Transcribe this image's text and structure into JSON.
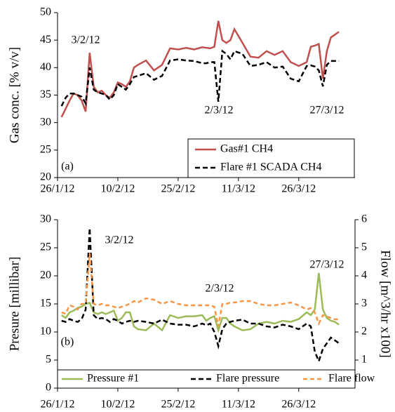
{
  "chart_data": [
    {
      "type": "line",
      "y_label": "Gas conc. [% v/v]",
      "annotations": [
        "3/2/12",
        "2/3/12",
        "27/3/12",
        "(a)"
      ],
      "x": [
        "2012-01-27",
        "2012-01-28",
        "2012-01-29",
        "2012-01-30",
        "2012-01-31",
        "2012-02-01",
        "2012-02-02",
        "2012-02-03",
        "2012-02-04",
        "2012-02-05",
        "2012-02-06",
        "2012-02-07",
        "2012-02-08",
        "2012-02-09",
        "2012-02-10",
        "2012-02-11",
        "2012-02-12",
        "2012-02-13",
        "2012-02-14",
        "2012-02-15",
        "2012-02-17",
        "2012-02-19",
        "2012-02-21",
        "2012-02-23",
        "2012-02-25",
        "2012-02-27",
        "2012-02-29",
        "2012-03-02",
        "2012-03-03",
        "2012-03-04",
        "2012-03-05",
        "2012-03-06",
        "2012-03-07",
        "2012-03-08",
        "2012-03-09",
        "2012-03-10",
        "2012-03-12",
        "2012-03-14",
        "2012-03-16",
        "2012-03-18",
        "2012-03-20",
        "2012-03-22",
        "2012-03-24",
        "2012-03-26",
        "2012-03-28",
        "2012-03-29",
        "2012-03-30",
        "2012-03-31",
        "2012-04-01",
        "2012-04-02",
        "2012-04-03",
        "2012-04-04",
        "2012-04-05"
      ],
      "series": [
        {
          "name": "Gas#1 CH4",
          "color": "#c0504d",
          "linestyle": "solid",
          "values": [
            31,
            32.5,
            34,
            35.3,
            35,
            34,
            32,
            42.7,
            36.5,
            35.5,
            35.8,
            35,
            34.5,
            35.5,
            37.3,
            37,
            36.5,
            37.5,
            40,
            40.5,
            41.3,
            39.5,
            40.5,
            43.5,
            43.3,
            43.6,
            43.3,
            43.7,
            43.6,
            43.5,
            43.8,
            48.5,
            45,
            44.5,
            45,
            47,
            44.5,
            42,
            41.8,
            43,
            42.3,
            43,
            41,
            40.3,
            41,
            43.8,
            44,
            44.3,
            38,
            43,
            45.5,
            46,
            46.5
          ]
        },
        {
          "name": "Flare #1 SCADA CH4",
          "color": "#000000",
          "linestyle": "dashed",
          "values": [
            33,
            34.5,
            35.3,
            35.3,
            35,
            34.7,
            33.5,
            40,
            36,
            35.5,
            35.3,
            35,
            34.2,
            35,
            37,
            36.5,
            36,
            37,
            38.3,
            38.5,
            39,
            37.8,
            38.5,
            41.3,
            41.5,
            41.3,
            41.2,
            40.8,
            40.8,
            41,
            41,
            33.8,
            43,
            42.5,
            41.5,
            43,
            42.5,
            40.3,
            40.5,
            41,
            40,
            40.2,
            38,
            37.5,
            40.3,
            40.4,
            40.2,
            39.5,
            36.6,
            40.5,
            41.2,
            41.2,
            41.2
          ]
        }
      ],
      "xlim": [
        "2012-01-26",
        "2012-04-09"
      ],
      "xticks": [
        {
          "value": "2012-01-26",
          "label": "26/1/12"
        },
        {
          "value": "2012-02-10",
          "label": "10/2/12"
        },
        {
          "value": "2012-02-25",
          "label": "25/2/12"
        },
        {
          "value": "2012-03-11",
          "label": "11/3/12"
        },
        {
          "value": "2012-03-26",
          "label": "26/3/12"
        }
      ],
      "ylim": [
        20,
        50
      ],
      "yticks": [
        20,
        25,
        30,
        35,
        40,
        45,
        50
      ],
      "grid": false,
      "legend": "lower right"
    },
    {
      "type": "line",
      "y_label": "Presure [millibar]",
      "y2_label": "Flow [m^3/hr x100]",
      "annotations": [
        "3/2/12",
        "2/3/12",
        "27/3/12",
        "(b)"
      ],
      "x": [
        "2012-01-27",
        "2012-01-28",
        "2012-01-29",
        "2012-01-30",
        "2012-01-31",
        "2012-02-01",
        "2012-02-02",
        "2012-02-03",
        "2012-02-04",
        "2012-02-05",
        "2012-02-06",
        "2012-02-07",
        "2012-02-08",
        "2012-02-09",
        "2012-02-10",
        "2012-02-11",
        "2012-02-12",
        "2012-02-13",
        "2012-02-14",
        "2012-02-15",
        "2012-02-17",
        "2012-02-19",
        "2012-02-21",
        "2012-02-23",
        "2012-02-25",
        "2012-02-27",
        "2012-02-29",
        "2012-03-02",
        "2012-03-03",
        "2012-03-04",
        "2012-03-05",
        "2012-03-06",
        "2012-03-07",
        "2012-03-08",
        "2012-03-09",
        "2012-03-10",
        "2012-03-12",
        "2012-03-14",
        "2012-03-16",
        "2012-03-18",
        "2012-03-20",
        "2012-03-22",
        "2012-03-24",
        "2012-03-26",
        "2012-03-28",
        "2012-03-29",
        "2012-03-30",
        "2012-03-31",
        "2012-04-01",
        "2012-04-02",
        "2012-04-03",
        "2012-04-04",
        "2012-04-05"
      ],
      "series": [
        {
          "name": "Pressure #1",
          "color": "#9bbb59",
          "linestyle": "solid",
          "values": [
            13,
            12.5,
            13.5,
            13.8,
            14.3,
            14.5,
            15,
            15.2,
            13.5,
            13.2,
            13.5,
            13.2,
            13.5,
            13.8,
            12,
            12.5,
            13.5,
            13.5,
            11,
            10.5,
            10.3,
            11.5,
            10.3,
            13,
            12.5,
            12.8,
            12.8,
            13,
            12,
            12.5,
            12.8,
            10.3,
            12.5,
            12.5,
            11.5,
            11,
            10.3,
            10.5,
            11.5,
            11.8,
            11.5,
            12,
            11.8,
            12.3,
            13.5,
            13,
            14,
            20.5,
            14,
            12.5,
            12,
            11.8,
            11.3
          ]
        },
        {
          "name": "Flare pressure",
          "color": "#000000",
          "linestyle": "dashed",
          "values": [
            12,
            11.8,
            12.3,
            12,
            11.8,
            12.3,
            14,
            28.5,
            13,
            12.3,
            12.5,
            12.3,
            11.8,
            12.3,
            12,
            11.5,
            11.8,
            12,
            11.8,
            12,
            11.8,
            11.5,
            12.2,
            11.5,
            11.3,
            11.3,
            11,
            11.5,
            11.2,
            11.5,
            10,
            7.5,
            10.5,
            11.5,
            11.8,
            12,
            12.2,
            11.5,
            11.5,
            11,
            10.8,
            11.3,
            11,
            10.5,
            11.5,
            11,
            6.5,
            4.8,
            7,
            8,
            9,
            8.5,
            8
          ]
        },
        {
          "name": "Flare flow",
          "color": "#f79646",
          "linestyle": "dashed",
          "axis": "y2",
          "values": [
            2.7,
            2.65,
            2.95,
            2.9,
            2.8,
            3,
            3,
            4.8,
            3,
            2.95,
            3,
            2.95,
            2.95,
            2.9,
            2.85,
            2.9,
            2.95,
            3,
            3.1,
            3.05,
            3.2,
            3.15,
            3,
            3.1,
            3,
            2.95,
            2.95,
            2.95,
            2.95,
            2.95,
            2.9,
            2.2,
            3,
            3,
            3.05,
            3.05,
            3.1,
            3.1,
            3,
            2.95,
            2.95,
            3,
            3.05,
            2.95,
            2.8,
            2.85,
            2.7,
            2.3,
            2.6,
            2.55,
            2.5,
            2.45,
            2.45
          ]
        }
      ],
      "xlim": [
        "2012-01-26",
        "2012-04-09"
      ],
      "xticks": [
        {
          "value": "2012-01-26",
          "label": "26/1/12"
        },
        {
          "value": "2012-02-10",
          "label": "10/2/12"
        },
        {
          "value": "2012-02-25",
          "label": "25/2/12"
        },
        {
          "value": "2012-03-11",
          "label": "11/3/12"
        },
        {
          "value": "2012-03-26",
          "label": "26/3/12"
        }
      ],
      "ylim": [
        0,
        30
      ],
      "yticks": [
        0,
        5,
        10,
        15,
        20,
        25,
        30
      ],
      "y2lim": [
        0,
        6
      ],
      "y2ticks": [
        1,
        2,
        3,
        4,
        5,
        6
      ],
      "grid": false,
      "legend": "lower center"
    }
  ]
}
